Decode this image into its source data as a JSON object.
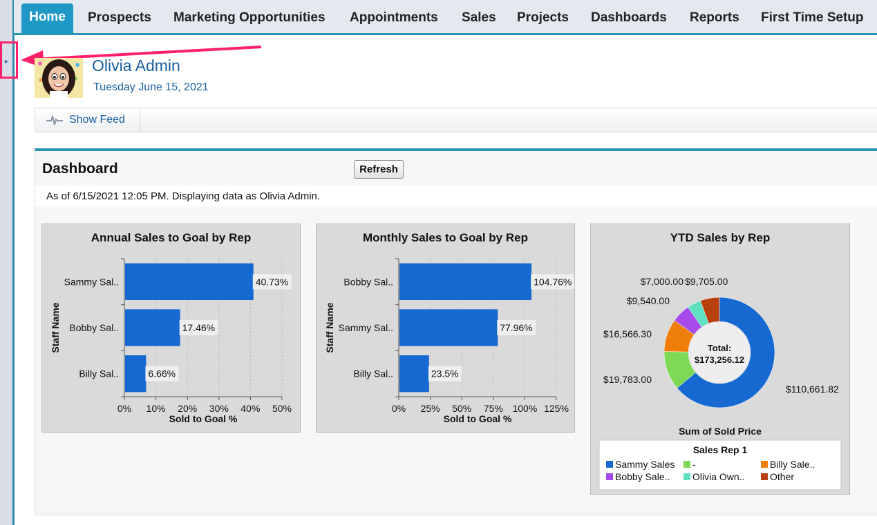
{
  "nav": {
    "tabs": [
      "Home",
      "Prospects",
      "Marketing Opportunities",
      "Appointments",
      "Sales",
      "Projects",
      "Dashboards",
      "Reports",
      "First Time Setup"
    ],
    "active": "Home"
  },
  "sidebar_toggle_icon": "triangle-right-icon",
  "callout_color": "#ff1f6b",
  "user": {
    "name": "Olivia Admin",
    "date": "Tuesday June 15, 2021"
  },
  "feed": {
    "label": "Show Feed",
    "icon": "feed-pulse-icon"
  },
  "dashboard": {
    "title": "Dashboard",
    "refresh_label": "Refresh",
    "as_of": "As of 6/15/2021 12:05 PM. Displaying data as Olivia Admin."
  },
  "chart_data": [
    {
      "type": "bar",
      "orientation": "horizontal",
      "title": "Annual Sales to Goal by Rep",
      "xlabel": "Sold to Goal %",
      "ylabel": "Staff Name",
      "categories": [
        "Sammy Sal..",
        "Bobby Sal..",
        "Billy Sal.."
      ],
      "values": [
        40.73,
        17.46,
        6.66
      ],
      "value_labels": [
        "40.73%",
        "17.46%",
        "6.66%"
      ],
      "xlim": [
        0,
        50
      ],
      "ticks": [
        "0%",
        "10%",
        "20%",
        "30%",
        "40%",
        "50%"
      ],
      "color": "#1569d0"
    },
    {
      "type": "bar",
      "orientation": "horizontal",
      "title": "Monthly Sales to Goal by Rep",
      "xlabel": "Sold to Goal %",
      "ylabel": "Staff Name",
      "categories": [
        "Bobby Sal..",
        "Sammy Sal..",
        "Billy Sal.."
      ],
      "values": [
        104.76,
        77.96,
        23.5
      ],
      "value_labels": [
        "104.76%",
        "77.96%",
        "23.5%"
      ],
      "xlim": [
        0,
        125
      ],
      "ticks": [
        "0%",
        "25%",
        "50%",
        "75%",
        "100%",
        "125%"
      ],
      "color": "#1569d0"
    },
    {
      "type": "pie",
      "donut": true,
      "title": "YTD Sales by Rep",
      "xlabel": "Sum of Sold Price",
      "center_label": "Total:",
      "center_value": "$173,256.12",
      "legend_title": "Sales Rep 1",
      "slices": [
        {
          "name": "Sammy Sales",
          "value": 110661.82,
          "label": "$110,661.82",
          "color": "#1569d0"
        },
        {
          "name": "-",
          "value": 19783.0,
          "label": "$19,783.00",
          "color": "#7ed957"
        },
        {
          "name": "Billy Sale..",
          "value": 16566.3,
          "label": "$16,566.30",
          "color": "#f07f09"
        },
        {
          "name": "Bobby Sale..",
          "value": 9540.0,
          "label": "$9,540.00",
          "color": "#a64bea"
        },
        {
          "name": "Olivia Own..",
          "value": 7000.0,
          "label": "$7,000.00",
          "color": "#5fe0c0"
        },
        {
          "name": "Other",
          "value": 9705.0,
          "label": "$9,705.00",
          "color": "#b8400e"
        }
      ],
      "legend_order": [
        "Sammy Sales",
        "-",
        "Billy Sale..",
        "Bobby Sale..",
        "Olivia Own..",
        "Other"
      ]
    }
  ]
}
